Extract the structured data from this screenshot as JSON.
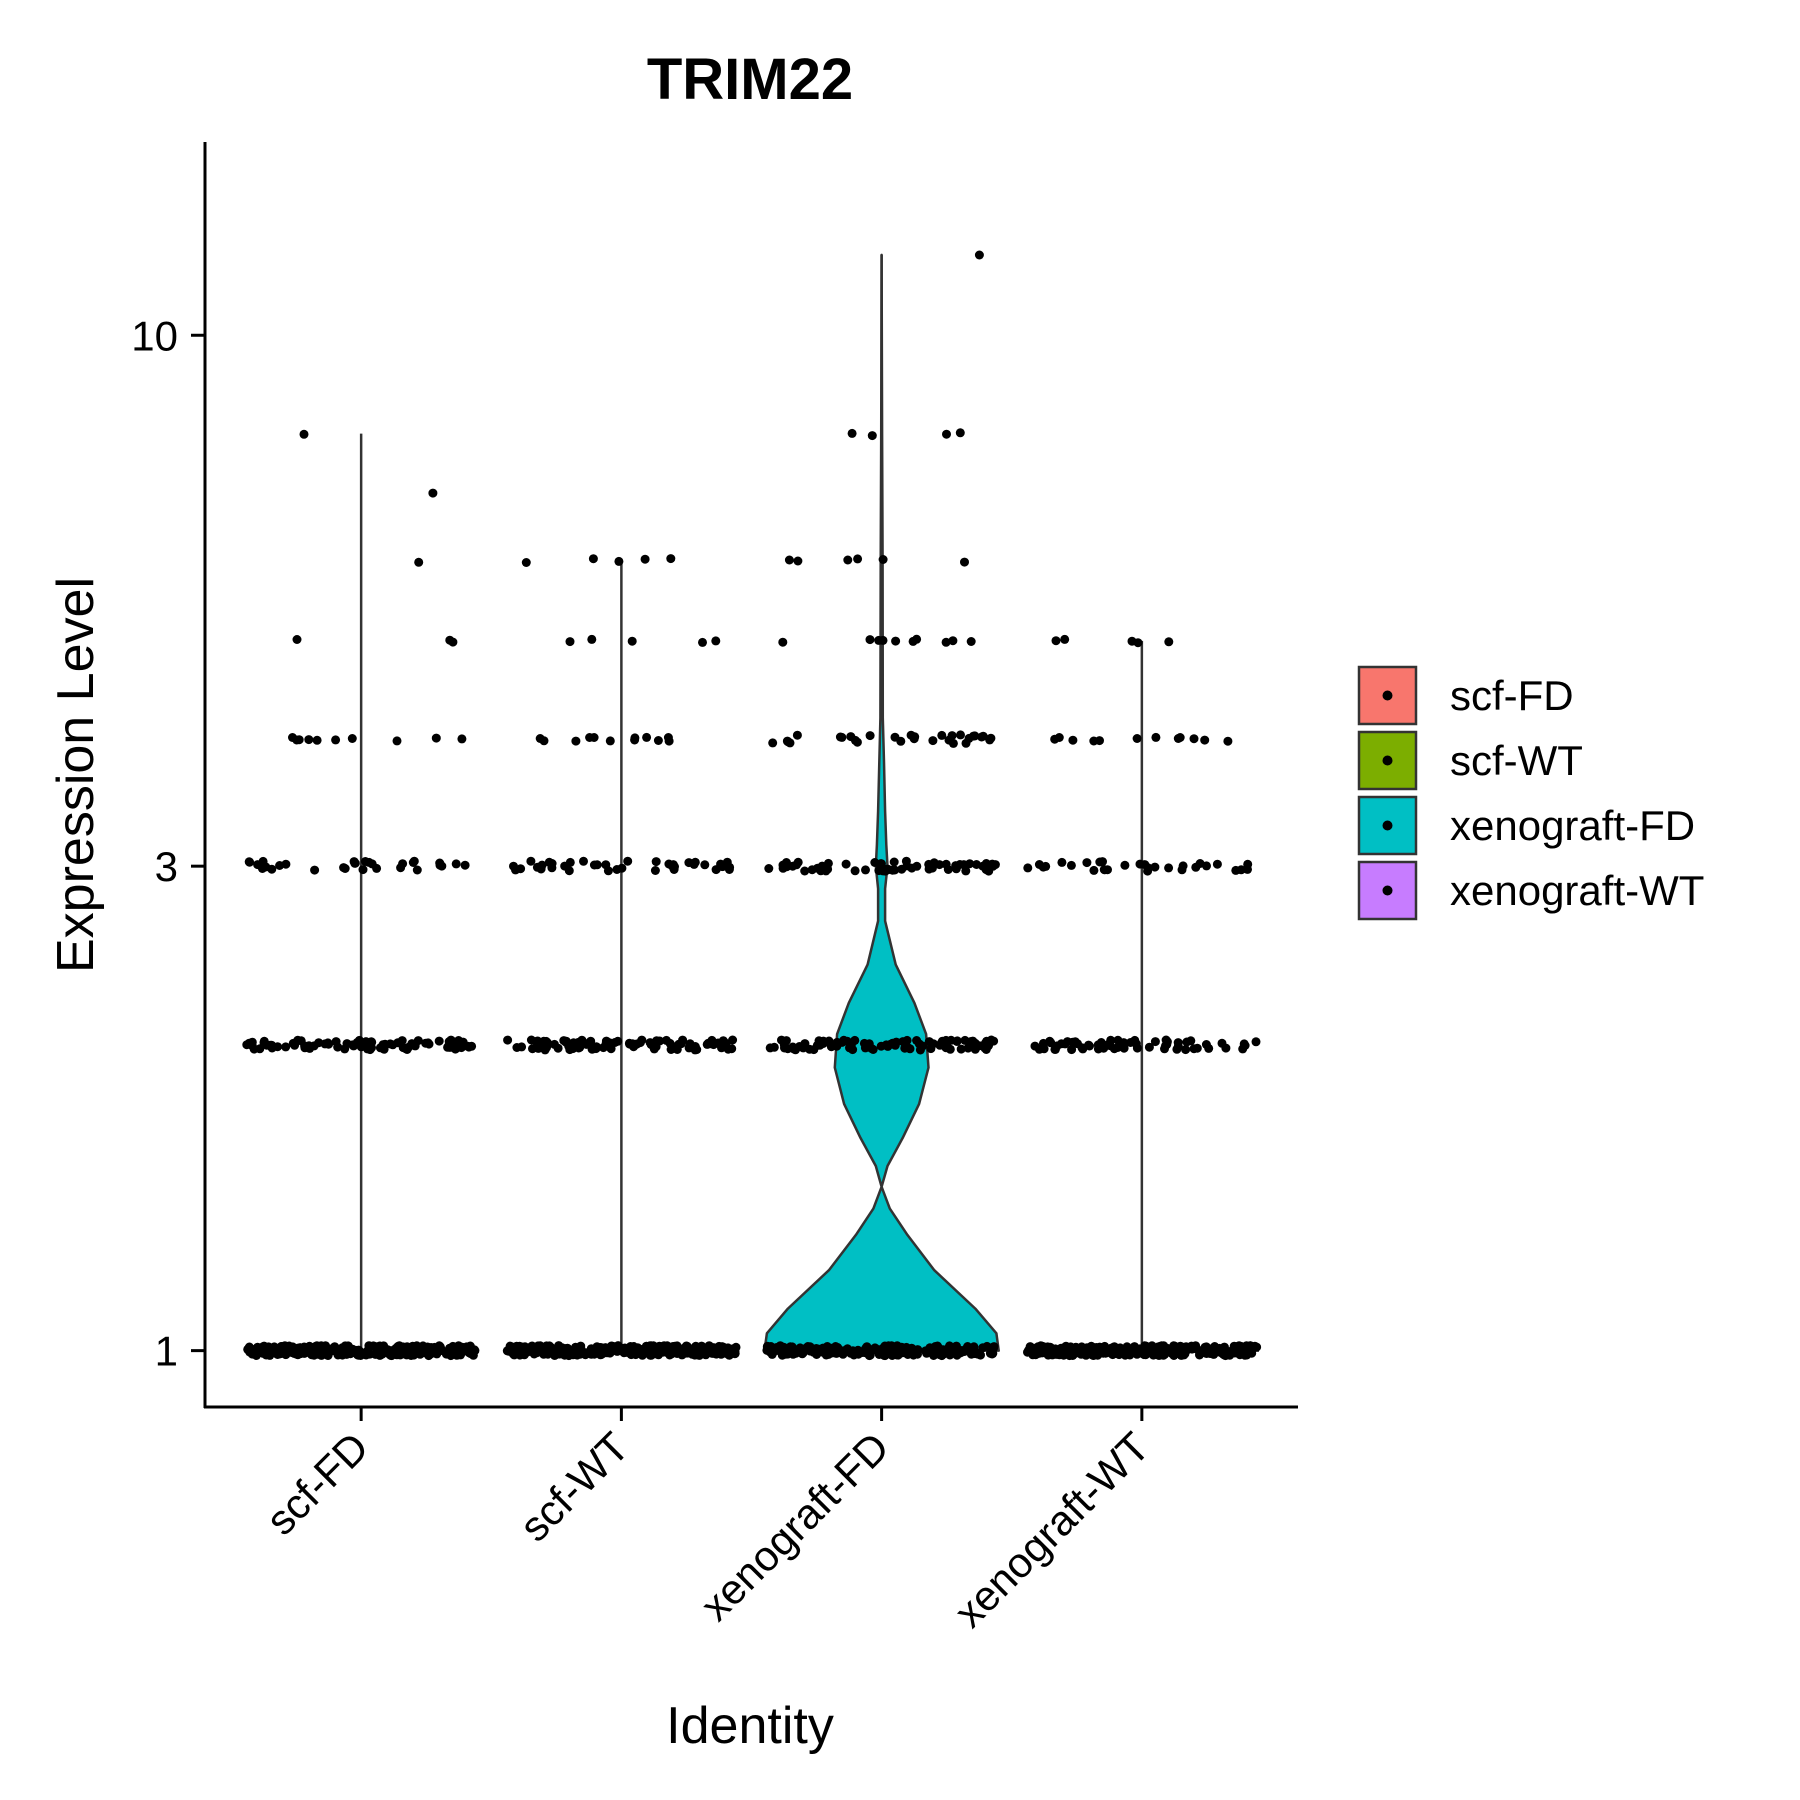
{
  "chart_data": {
    "type": "violin",
    "title": "TRIM22",
    "xlabel": "Identity",
    "ylabel": "Expression Level",
    "y_scale": "log",
    "ylim": [
      0.88,
      15.5
    ],
    "y_ticks": [
      1,
      3,
      10
    ],
    "y_tick_labels": [
      "1",
      "3",
      "10"
    ],
    "categories": [
      "scf-FD",
      "scf-WT",
      "xenograft-FD",
      "xenograft-WT"
    ],
    "grid": false,
    "legend_position": "right",
    "legend": [
      {
        "label": "scf-FD",
        "color": "#F8766D"
      },
      {
        "label": "scf-WT",
        "color": "#7CAE00"
      },
      {
        "label": "xenograft-FD",
        "color": "#00BFC4"
      },
      {
        "label": "xenograft-WT",
        "color": "#C77CFF"
      }
    ],
    "expression_levels": [
      1,
      2,
      3,
      4,
      5,
      6,
      7,
      8,
      12
    ],
    "violins": [
      {
        "category": "scf-FD",
        "color": "#F8766D",
        "max": 8,
        "min": 1,
        "density": [
          [
            1,
            1.0
          ],
          [
            8,
            0.0
          ]
        ]
      },
      {
        "category": "scf-WT",
        "color": "#7CAE00",
        "max": 6,
        "min": 1,
        "density": [
          [
            1,
            1.0
          ],
          [
            6,
            0.0
          ]
        ]
      },
      {
        "category": "xenograft-FD",
        "color": "#00BFC4",
        "max": 12,
        "min": 1,
        "density": [
          [
            1,
            1.0
          ],
          [
            1.04,
            0.98
          ],
          [
            1.1,
            0.8
          ],
          [
            1.2,
            0.45
          ],
          [
            1.3,
            0.22
          ],
          [
            1.38,
            0.07
          ],
          [
            1.45,
            0.0
          ],
          [
            1.52,
            0.05
          ],
          [
            1.62,
            0.18
          ],
          [
            1.75,
            0.32
          ],
          [
            1.9,
            0.4
          ],
          [
            2.05,
            0.38
          ],
          [
            2.2,
            0.28
          ],
          [
            2.4,
            0.12
          ],
          [
            2.65,
            0.03
          ],
          [
            2.85,
            0.03
          ],
          [
            3.0,
            0.05
          ],
          [
            3.15,
            0.04
          ],
          [
            3.4,
            0.03
          ],
          [
            3.8,
            0.02
          ],
          [
            4.2,
            0.01
          ],
          [
            6.0,
            0.008
          ],
          [
            8.0,
            0.004
          ],
          [
            12.0,
            0.0
          ]
        ]
      },
      {
        "category": "xenograft-WT",
        "color": "#C77CFF",
        "max": 5,
        "min": 1,
        "density": [
          [
            1,
            1.0
          ],
          [
            5,
            0.0
          ]
        ]
      }
    ],
    "points": {
      "scf-FD": {
        "counts": [
          [
            1,
            300
          ],
          [
            2,
            80
          ],
          [
            3,
            30
          ],
          [
            4,
            10
          ],
          [
            5,
            3
          ],
          [
            6,
            1
          ],
          [
            7,
            1
          ],
          [
            8,
            1
          ]
        ]
      },
      "scf-WT": {
        "counts": [
          [
            1,
            300
          ],
          [
            2,
            90
          ],
          [
            3,
            40
          ],
          [
            4,
            12
          ],
          [
            5,
            5
          ],
          [
            6,
            5
          ]
        ]
      },
      "xenograft-FD": {
        "counts": [
          [
            1,
            200
          ],
          [
            2,
            90
          ],
          [
            3,
            60
          ],
          [
            4,
            30
          ],
          [
            5,
            10
          ],
          [
            6,
            6
          ],
          [
            8,
            4
          ],
          [
            12,
            1
          ]
        ]
      },
      "xenograft-WT": {
        "counts": [
          [
            1,
            300
          ],
          [
            2,
            60
          ],
          [
            3,
            30
          ],
          [
            4,
            12
          ],
          [
            5,
            5
          ]
        ]
      }
    }
  }
}
